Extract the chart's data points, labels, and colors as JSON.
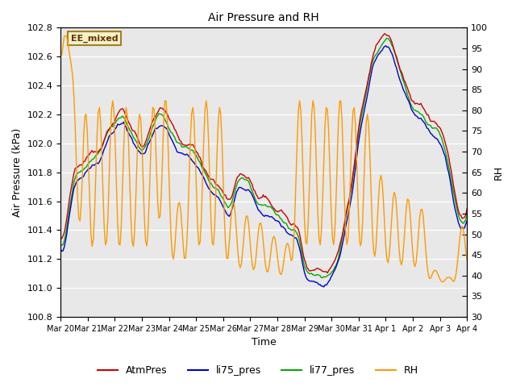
{
  "title": "Air Pressure and RH",
  "xlabel": "Time",
  "ylabel_left": "Air Pressure (kPa)",
  "ylabel_right": "RH",
  "ylim_left": [
    100.8,
    102.8
  ],
  "ylim_right": [
    30,
    100
  ],
  "yticks_left": [
    100.8,
    101.0,
    101.2,
    101.4,
    101.6,
    101.8,
    102.0,
    102.2,
    102.4,
    102.6,
    102.8
  ],
  "yticks_right": [
    30,
    35,
    40,
    45,
    50,
    55,
    60,
    65,
    70,
    75,
    80,
    85,
    90,
    95,
    100
  ],
  "xtick_labels": [
    "Mar 20",
    "Mar 21",
    "Mar 22",
    "Mar 23",
    "Mar 24",
    "Mar 25",
    "Mar 26",
    "Mar 27",
    "Mar 28",
    "Mar 29",
    "Mar 30",
    "Mar 31",
    "Apr 1",
    "Apr 2",
    "Apr 3",
    "Apr 4"
  ],
  "annotation_text": "EE_mixed",
  "annotation_bg": "#f5f0c8",
  "annotation_border": "#a08020",
  "bg_color": "#e8e8e8",
  "colors": {
    "AtmPres": "#cc0000",
    "li75_pres": "#0000cc",
    "li77_pres": "#00aa00",
    "RH": "#ff9900"
  },
  "linewidths": {
    "AtmPres": 1.0,
    "li75_pres": 1.0,
    "li77_pres": 1.0,
    "RH": 1.0
  },
  "legend_labels": [
    "AtmPres",
    "li75_pres",
    "li77_pres",
    "RH"
  ],
  "n_points": 336
}
